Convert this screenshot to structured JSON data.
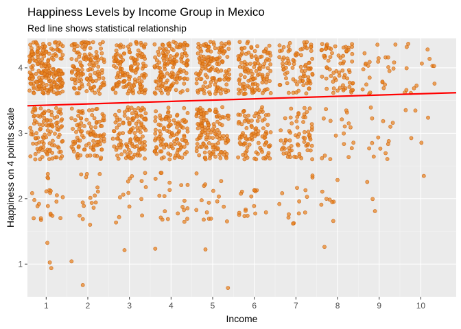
{
  "chart_data": {
    "type": "scatter",
    "title": "Happiness Levels by Income Group in Mexico",
    "subtitle": "Red line shows statistical relationship",
    "xlabel": "Income",
    "ylabel": "Happiness on 4 points scale",
    "x_ticks": [
      "1",
      "2",
      "3",
      "4",
      "5",
      "6",
      "7",
      "8",
      "9",
      "10"
    ],
    "y_ticks": [
      "1",
      "2",
      "3",
      "4"
    ],
    "xlim": [
      0.55,
      10.85
    ],
    "ylim": [
      0.5,
      4.45
    ],
    "grid": true,
    "legend": "none",
    "jitter": 0.4,
    "point_color": "#e8821e",
    "point_stroke": "#c95e0a",
    "line_color": "#ff0000",
    "background": "#ebebeb",
    "trend_line": {
      "x": [
        0.55,
        10.85
      ],
      "y": [
        3.42,
        3.62
      ]
    },
    "points_per_group": {
      "1": {
        "4": 200,
        "3": 110,
        "2": 22,
        "1": 3
      },
      "2": {
        "4": 130,
        "3": 100,
        "2": 16,
        "1": 2
      },
      "3": {
        "4": 145,
        "3": 120,
        "2": 14,
        "1": 1
      },
      "4": {
        "4": 150,
        "3": 110,
        "2": 20,
        "1": 1
      },
      "5": {
        "4": 140,
        "3": 130,
        "2": 16,
        "1": 2
      },
      "6": {
        "4": 120,
        "3": 95,
        "2": 16,
        "1": 0
      },
      "7": {
        "4": 85,
        "3": 65,
        "2": 14,
        "1": 0
      },
      "8": {
        "4": 70,
        "3": 18,
        "2": 8,
        "1": 1
      },
      "9": {
        "4": 25,
        "3": 14,
        "2": 3,
        "1": 0
      },
      "10": {
        "4": 14,
        "3": 5,
        "2": 1,
        "1": 0
      }
    }
  }
}
